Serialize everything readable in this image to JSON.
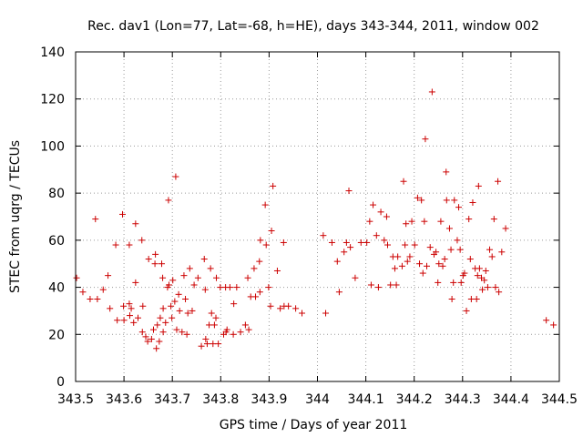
{
  "chart_data": {
    "type": "scatter",
    "title": "Rec. dav1 (Lon=77, Lat=-68, h=HE), days 343-344, 2011, window 002",
    "xlabel": "GPS time / Days of year 2011",
    "ylabel": "STEC from uqrg / TECUs",
    "xlim": [
      343.5,
      344.5
    ],
    "ylim": [
      0,
      140
    ],
    "xticks": [
      "343.5",
      "343.6",
      "343.7",
      "343.8",
      "343.9",
      "344",
      "344.1",
      "344.2",
      "344.3",
      "344.4",
      "344.5"
    ],
    "yticks": [
      "0",
      "20",
      "40",
      "60",
      "80",
      "100",
      "120",
      "140"
    ],
    "grid": true,
    "legend": "none",
    "marker": "plus",
    "color": "#cc0000",
    "points": [
      [
        343.502,
        44
      ],
      [
        343.515,
        38
      ],
      [
        343.53,
        35
      ],
      [
        343.541,
        69
      ],
      [
        343.545,
        35
      ],
      [
        343.557,
        39
      ],
      [
        343.567,
        45
      ],
      [
        343.571,
        31
      ],
      [
        343.583,
        58
      ],
      [
        343.586,
        26
      ],
      [
        343.597,
        71
      ],
      [
        343.599,
        32
      ],
      [
        343.6,
        26
      ],
      [
        343.611,
        58
      ],
      [
        343.611,
        33
      ],
      [
        343.612,
        28
      ],
      [
        343.615,
        31
      ],
      [
        343.62,
        25
      ],
      [
        343.624,
        42
      ],
      [
        343.624,
        67
      ],
      [
        343.629,
        27
      ],
      [
        343.637,
        60
      ],
      [
        343.638,
        21
      ],
      [
        343.639,
        32
      ],
      [
        343.645,
        19
      ],
      [
        343.649,
        17
      ],
      [
        343.651,
        52
      ],
      [
        343.657,
        18
      ],
      [
        343.661,
        22
      ],
      [
        343.664,
        50
      ],
      [
        343.665,
        54
      ],
      [
        343.667,
        14
      ],
      [
        343.669,
        24
      ],
      [
        343.673,
        17
      ],
      [
        343.675,
        27
      ],
      [
        343.678,
        50
      ],
      [
        343.68,
        44
      ],
      [
        343.681,
        31
      ],
      [
        343.681,
        21
      ],
      [
        343.686,
        25
      ],
      [
        343.69,
        40
      ],
      [
        343.692,
        77
      ],
      [
        343.693,
        41
      ],
      [
        343.697,
        32
      ],
      [
        343.699,
        27
      ],
      [
        343.701,
        43
      ],
      [
        343.705,
        34
      ],
      [
        343.707,
        87
      ],
      [
        343.709,
        22
      ],
      [
        343.713,
        37
      ],
      [
        343.715,
        30
      ],
      [
        343.72,
        21
      ],
      [
        343.724,
        45
      ],
      [
        343.727,
        35
      ],
      [
        343.73,
        20
      ],
      [
        343.732,
        29
      ],
      [
        343.736,
        48
      ],
      [
        343.741,
        30
      ],
      [
        343.745,
        41
      ],
      [
        343.753,
        44
      ],
      [
        343.76,
        15
      ],
      [
        343.766,
        52
      ],
      [
        343.768,
        39
      ],
      [
        343.769,
        18
      ],
      [
        343.772,
        16
      ],
      [
        343.776,
        24
      ],
      [
        343.779,
        48
      ],
      [
        343.781,
        29
      ],
      [
        343.784,
        16
      ],
      [
        343.787,
        24
      ],
      [
        343.79,
        27
      ],
      [
        343.791,
        44
      ],
      [
        343.795,
        16
      ],
      [
        343.799,
        40
      ],
      [
        343.806,
        20
      ],
      [
        343.81,
        40
      ],
      [
        343.811,
        21
      ],
      [
        343.813,
        22
      ],
      [
        343.819,
        40
      ],
      [
        343.826,
        20
      ],
      [
        343.827,
        33
      ],
      [
        343.833,
        40
      ],
      [
        343.841,
        21
      ],
      [
        343.851,
        24
      ],
      [
        343.856,
        44
      ],
      [
        343.858,
        22
      ],
      [
        343.862,
        36
      ],
      [
        343.869,
        48
      ],
      [
        343.872,
        36
      ],
      [
        343.88,
        51
      ],
      [
        343.881,
        38
      ],
      [
        343.882,
        60
      ],
      [
        343.892,
        75
      ],
      [
        343.894,
        58
      ],
      [
        343.899,
        40
      ],
      [
        343.903,
        32
      ],
      [
        343.905,
        64
      ],
      [
        343.908,
        83
      ],
      [
        343.917,
        47
      ],
      [
        343.923,
        31
      ],
      [
        343.93,
        59
      ],
      [
        343.931,
        32
      ],
      [
        343.94,
        32
      ],
      [
        343.955,
        31
      ],
      [
        343.968,
        29
      ],
      [
        344.012,
        62
      ],
      [
        344.017,
        29
      ],
      [
        344.03,
        59
      ],
      [
        344.041,
        51
      ],
      [
        344.045,
        38
      ],
      [
        344.055,
        55
      ],
      [
        344.06,
        59
      ],
      [
        344.065,
        81
      ],
      [
        344.068,
        57
      ],
      [
        344.078,
        44
      ],
      [
        344.09,
        59
      ],
      [
        344.102,
        59
      ],
      [
        344.108,
        68
      ],
      [
        344.111,
        41
      ],
      [
        344.115,
        75
      ],
      [
        344.122,
        62
      ],
      [
        344.126,
        40
      ],
      [
        344.131,
        72
      ],
      [
        344.138,
        60
      ],
      [
        344.143,
        70
      ],
      [
        344.145,
        58
      ],
      [
        344.151,
        41
      ],
      [
        344.156,
        53
      ],
      [
        344.16,
        48
      ],
      [
        344.163,
        41
      ],
      [
        344.166,
        53
      ],
      [
        344.175,
        49
      ],
      [
        344.178,
        85
      ],
      [
        344.181,
        58
      ],
      [
        344.183,
        67
      ],
      [
        344.186,
        51
      ],
      [
        344.191,
        53
      ],
      [
        344.195,
        68
      ],
      [
        344.201,
        58
      ],
      [
        344.207,
        78
      ],
      [
        344.211,
        50
      ],
      [
        344.215,
        77
      ],
      [
        344.218,
        46
      ],
      [
        344.221,
        68
      ],
      [
        344.223,
        103
      ],
      [
        344.226,
        49
      ],
      [
        344.233,
        57
      ],
      [
        344.237,
        123
      ],
      [
        344.241,
        54
      ],
      [
        344.245,
        55
      ],
      [
        344.249,
        42
      ],
      [
        344.251,
        50
      ],
      [
        344.255,
        68
      ],
      [
        344.259,
        49
      ],
      [
        344.263,
        52
      ],
      [
        344.266,
        89
      ],
      [
        344.267,
        77
      ],
      [
        344.273,
        65
      ],
      [
        344.276,
        56
      ],
      [
        344.278,
        35
      ],
      [
        344.281,
        42
      ],
      [
        344.283,
        77
      ],
      [
        344.289,
        60
      ],
      [
        344.292,
        74
      ],
      [
        344.295,
        56
      ],
      [
        344.297,
        42
      ],
      [
        344.301,
        45
      ],
      [
        344.304,
        46
      ],
      [
        344.308,
        30
      ],
      [
        344.313,
        69
      ],
      [
        344.316,
        52
      ],
      [
        344.318,
        35
      ],
      [
        344.321,
        76
      ],
      [
        344.326,
        48
      ],
      [
        344.329,
        35
      ],
      [
        344.331,
        45
      ],
      [
        344.333,
        83
      ],
      [
        344.335,
        48
      ],
      [
        344.339,
        44
      ],
      [
        344.341,
        39
      ],
      [
        344.345,
        43
      ],
      [
        344.348,
        47
      ],
      [
        344.352,
        40
      ],
      [
        344.356,
        56
      ],
      [
        344.361,
        53
      ],
      [
        344.365,
        69
      ],
      [
        344.368,
        40
      ],
      [
        344.373,
        85
      ],
      [
        344.375,
        38
      ],
      [
        344.381,
        55
      ],
      [
        344.389,
        65
      ],
      [
        344.473,
        26
      ],
      [
        344.488,
        24
      ]
    ]
  }
}
